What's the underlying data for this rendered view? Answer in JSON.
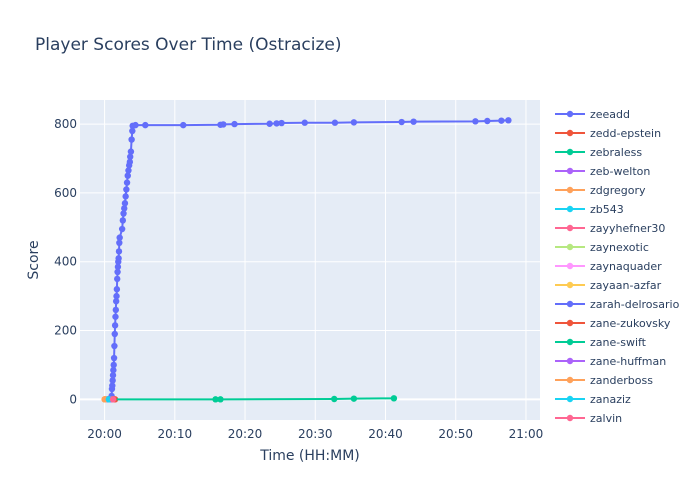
{
  "chart_data": {
    "type": "line",
    "title": "Player Scores Over Time (Ostracize)",
    "xlabel": "Time (HH:MM)",
    "ylabel": "Score",
    "x_range_minutes": [
      -3.5,
      62
    ],
    "ylim": [
      -60,
      870
    ],
    "x_ticks": [
      {
        "label": "20:00",
        "minutes": 0
      },
      {
        "label": "20:10",
        "minutes": 10
      },
      {
        "label": "20:20",
        "minutes": 20
      },
      {
        "label": "20:30",
        "minutes": 30
      },
      {
        "label": "20:40",
        "minutes": 40
      },
      {
        "label": "20:50",
        "minutes": 50
      },
      {
        "label": "21:00",
        "minutes": 60
      }
    ],
    "y_ticks": [
      0,
      200,
      400,
      600,
      800
    ],
    "grid": true,
    "legend_position": "right",
    "colors": {
      "plot_bg": "#e5ecf6",
      "grid": "#ffffff",
      "text": "#2a3f5f"
    },
    "series": [
      {
        "name": "zeeadd",
        "color": "#636efa",
        "points": [
          [
            0.8,
            0
          ],
          [
            1.0,
            10
          ],
          [
            1.05,
            30
          ],
          [
            1.1,
            40
          ],
          [
            1.15,
            55
          ],
          [
            1.2,
            70
          ],
          [
            1.25,
            85
          ],
          [
            1.3,
            100
          ],
          [
            1.35,
            120
          ],
          [
            1.4,
            155
          ],
          [
            1.45,
            190
          ],
          [
            1.5,
            215
          ],
          [
            1.55,
            240
          ],
          [
            1.6,
            260
          ],
          [
            1.65,
            285
          ],
          [
            1.7,
            300
          ],
          [
            1.75,
            320
          ],
          [
            1.8,
            350
          ],
          [
            1.85,
            370
          ],
          [
            1.9,
            385
          ],
          [
            1.95,
            400
          ],
          [
            2.0,
            410
          ],
          [
            2.05,
            430
          ],
          [
            2.1,
            455
          ],
          [
            2.15,
            470
          ],
          [
            2.5,
            495
          ],
          [
            2.6,
            520
          ],
          [
            2.7,
            540
          ],
          [
            2.8,
            555
          ],
          [
            2.9,
            570
          ],
          [
            3.0,
            590
          ],
          [
            3.1,
            610
          ],
          [
            3.2,
            630
          ],
          [
            3.3,
            650
          ],
          [
            3.4,
            665
          ],
          [
            3.5,
            680
          ],
          [
            3.6,
            690
          ],
          [
            3.65,
            705
          ],
          [
            3.75,
            720
          ],
          [
            3.85,
            755
          ],
          [
            3.95,
            780
          ],
          [
            4.0,
            795
          ],
          [
            4.4,
            797
          ],
          [
            5.8,
            797
          ],
          [
            11.2,
            797
          ],
          [
            16.5,
            798
          ],
          [
            16.9,
            799
          ],
          [
            18.5,
            800
          ],
          [
            23.5,
            801
          ],
          [
            24.5,
            802
          ],
          [
            25.2,
            803
          ],
          [
            28.5,
            804
          ],
          [
            32.8,
            804
          ],
          [
            35.5,
            805
          ],
          [
            42.3,
            806
          ],
          [
            44.0,
            807
          ],
          [
            52.8,
            808
          ],
          [
            54.5,
            809
          ],
          [
            56.5,
            810
          ],
          [
            57.5,
            811
          ]
        ]
      },
      {
        "name": "zedd-epstein",
        "color": "#ef553b",
        "points": [
          [
            1.1,
            0
          ],
          [
            1.5,
            0
          ]
        ]
      },
      {
        "name": "zebraless",
        "color": "#00cc96",
        "points": [
          [
            1.0,
            0
          ],
          [
            15.8,
            0
          ],
          [
            16.5,
            0
          ],
          [
            32.7,
            1
          ],
          [
            35.5,
            2
          ],
          [
            41.2,
            3
          ]
        ]
      },
      {
        "name": "zeb-welton",
        "color": "#ab63fa",
        "points": [
          [
            0.6,
            0
          ]
        ]
      },
      {
        "name": "zdgregory",
        "color": "#ffa15a",
        "points": [
          [
            0.0,
            0
          ]
        ]
      },
      {
        "name": "zb543",
        "color": "#19d3f3",
        "points": [
          [
            0.3,
            0
          ]
        ]
      },
      {
        "name": "zayyhefner30",
        "color": "#ff6692",
        "points": [
          [
            0.9,
            0
          ]
        ]
      },
      {
        "name": "zaynexotic",
        "color": "#b6e880",
        "points": [
          [
            0.2,
            0
          ]
        ]
      },
      {
        "name": "zaynaquader",
        "color": "#ff97ff",
        "points": [
          [
            0.4,
            0
          ]
        ]
      },
      {
        "name": "zayaan-azfar",
        "color": "#fecb52",
        "points": [
          [
            0.1,
            0
          ]
        ]
      },
      {
        "name": "zarah-delrosario",
        "color": "#636efa",
        "points": [
          [
            0.5,
            0
          ]
        ]
      },
      {
        "name": "zane-zukovsky",
        "color": "#ef553b",
        "points": [
          [
            1.3,
            0
          ]
        ]
      },
      {
        "name": "zane-swift",
        "color": "#00cc96",
        "points": [
          [
            0.7,
            0
          ]
        ]
      },
      {
        "name": "zane-huffman",
        "color": "#ab63fa",
        "points": [
          [
            0.8,
            0
          ]
        ]
      },
      {
        "name": "zanderboss",
        "color": "#ffa15a",
        "points": [
          [
            0.05,
            0
          ]
        ]
      },
      {
        "name": "zanaziz",
        "color": "#19d3f3",
        "points": [
          [
            0.6,
            0
          ]
        ]
      },
      {
        "name": "zalvin",
        "color": "#ff6692",
        "points": [
          [
            1.2,
            0
          ]
        ]
      }
    ]
  }
}
